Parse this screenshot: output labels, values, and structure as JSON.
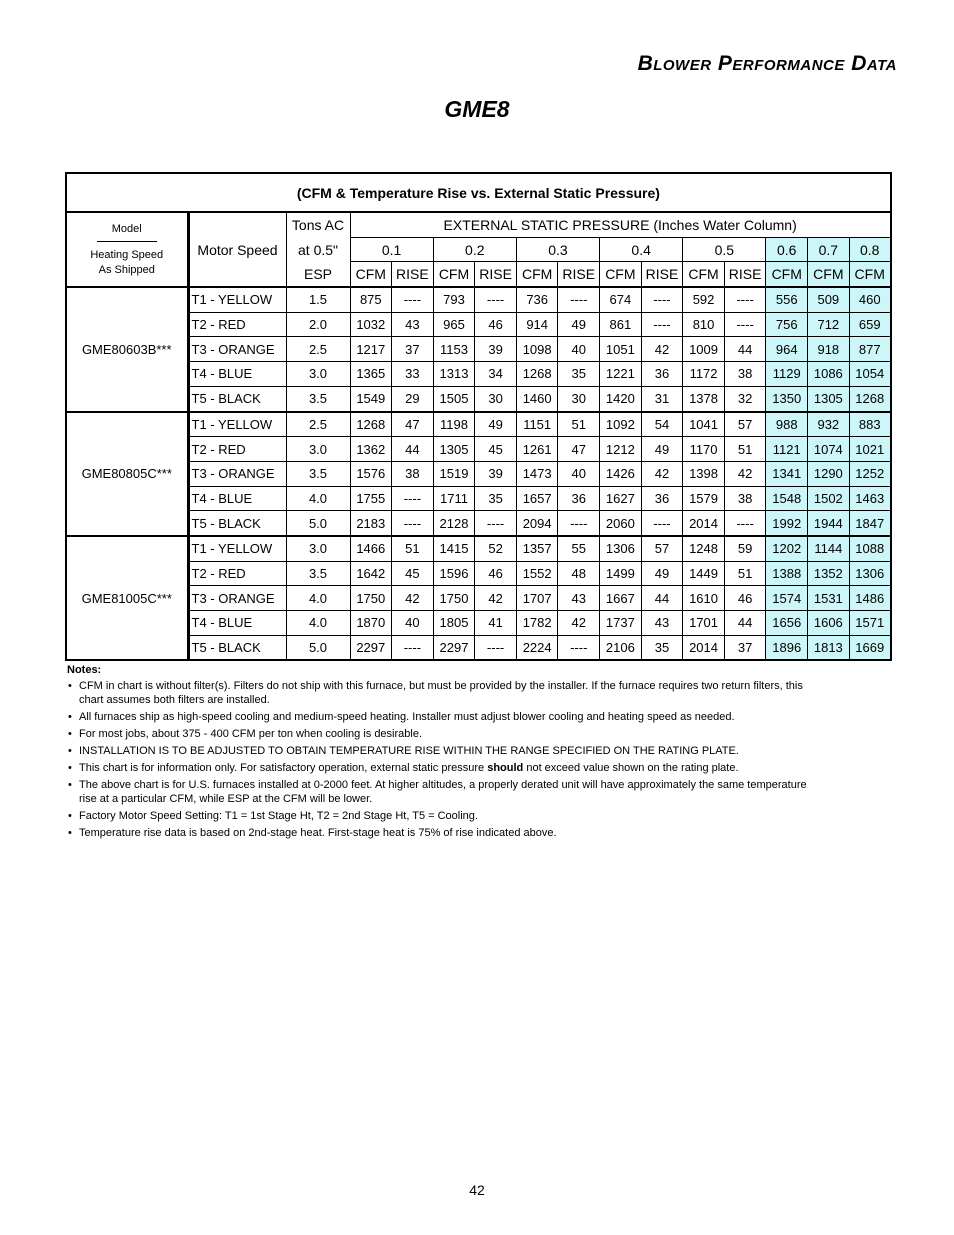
{
  "header": {
    "title": "Blower Performance Data",
    "model": "GME8"
  },
  "table": {
    "caption": "(CFM & Temperature Rise vs. External Static Pressure)",
    "head": {
      "model": "Model",
      "heating_speed": "Heating Speed",
      "as_shipped": "As Shipped",
      "motor_speed": "Motor Speed",
      "tons": [
        "Tons AC",
        "at 0.5\"",
        "ESP"
      ],
      "esp_title": "EXTERNAL STATIC PRESSURE (Inches Water Column)",
      "pressures": [
        "0.1",
        "0.2",
        "0.3",
        "0.4",
        "0.5",
        "0.6",
        "0.7",
        "0.8"
      ],
      "units": [
        "CFM",
        "RISE",
        "CFM",
        "RISE",
        "CFM",
        "RISE",
        "CFM",
        "RISE",
        "CFM",
        "RISE",
        "CFM",
        "CFM",
        "CFM"
      ]
    },
    "groups": [
      {
        "model": "GME80603B***",
        "rows": [
          [
            "T1 - YELLOW",
            "1.5",
            "875",
            "----",
            "793",
            "----",
            "736",
            "----",
            "674",
            "----",
            "592",
            "----",
            "556",
            "509",
            "460"
          ],
          [
            "T2 - RED",
            "2.0",
            "1032",
            "43",
            "965",
            "46",
            "914",
            "49",
            "861",
            "----",
            "810",
            "----",
            "756",
            "712",
            "659"
          ],
          [
            "T3 - ORANGE",
            "2.5",
            "1217",
            "37",
            "1153",
            "39",
            "1098",
            "40",
            "1051",
            "42",
            "1009",
            "44",
            "964",
            "918",
            "877"
          ],
          [
            "T4 - BLUE",
            "3.0",
            "1365",
            "33",
            "1313",
            "34",
            "1268",
            "35",
            "1221",
            "36",
            "1172",
            "38",
            "1129",
            "1086",
            "1054"
          ],
          [
            "T5 - BLACK",
            "3.5",
            "1549",
            "29",
            "1505",
            "30",
            "1460",
            "30",
            "1420",
            "31",
            "1378",
            "32",
            "1350",
            "1305",
            "1268"
          ]
        ]
      },
      {
        "model": "GME80805C***",
        "rows": [
          [
            "T1 - YELLOW",
            "2.5",
            "1268",
            "47",
            "1198",
            "49",
            "1151",
            "51",
            "1092",
            "54",
            "1041",
            "57",
            "988",
            "932",
            "883"
          ],
          [
            "T2 - RED",
            "3.0",
            "1362",
            "44",
            "1305",
            "45",
            "1261",
            "47",
            "1212",
            "49",
            "1170",
            "51",
            "1121",
            "1074",
            "1021"
          ],
          [
            "T3 - ORANGE",
            "3.5",
            "1576",
            "38",
            "1519",
            "39",
            "1473",
            "40",
            "1426",
            "42",
            "1398",
            "42",
            "1341",
            "1290",
            "1252"
          ],
          [
            "T4 - BLUE",
            "4.0",
            "1755",
            "----",
            "1711",
            "35",
            "1657",
            "36",
            "1627",
            "36",
            "1579",
            "38",
            "1548",
            "1502",
            "1463"
          ],
          [
            "T5 - BLACK",
            "5.0",
            "2183",
            "----",
            "2128",
            "----",
            "2094",
            "----",
            "2060",
            "----",
            "2014",
            "----",
            "1992",
            "1944",
            "1847"
          ]
        ]
      },
      {
        "model": "GME81005C***",
        "rows": [
          [
            "T1 - YELLOW",
            "3.0",
            "1466",
            "51",
            "1415",
            "52",
            "1357",
            "55",
            "1306",
            "57",
            "1248",
            "59",
            "1202",
            "1144",
            "1088"
          ],
          [
            "T2 - RED",
            "3.5",
            "1642",
            "45",
            "1596",
            "46",
            "1552",
            "48",
            "1499",
            "49",
            "1449",
            "51",
            "1388",
            "1352",
            "1306"
          ],
          [
            "T3 - ORANGE",
            "4.0",
            "1750",
            "42",
            "1750",
            "42",
            "1707",
            "43",
            "1667",
            "44",
            "1610",
            "46",
            "1574",
            "1531",
            "1486"
          ],
          [
            "T4 - BLUE",
            "4.0",
            "1870",
            "40",
            "1805",
            "41",
            "1782",
            "42",
            "1737",
            "43",
            "1701",
            "44",
            "1656",
            "1606",
            "1571"
          ],
          [
            "T5 - BLACK",
            "5.0",
            "2297",
            "----",
            "2297",
            "----",
            "2224",
            "----",
            "2106",
            "35",
            "2014",
            "37",
            "1896",
            "1813",
            "1669"
          ]
        ]
      }
    ]
  },
  "notes": {
    "title": "Notes:",
    "items": [
      "CFM in chart is without filter(s).  Filters do not ship with this furnace, but must be provided by the installer. If the furnace requires two return filters, this chart assumes both filters are installed.",
      "All furnaces ship as high-speed cooling and medium-speed heating. Installer must adjust blower cooling and heating speed as needed.",
      "For most jobs, about 375 - 400 CFM per ton when cooling is desirable.",
      "INSTALLATION IS TO BE ADJUSTED TO OBTAIN TEMPERATURE RISE WITHIN THE RANGE SPECIFIED ON THE RATING PLATE.",
      {
        "before": "This chart is for information only.  For satisfactory operation, external static pressure",
        "bold": "should",
        "after": "not exceed value shown on the rating plate."
      },
      "The above chart is for U.S. furnaces installed at 0-2000 feet. At higher altitudes, a properly derated unit will have approximately the same temperature rise at a particular CFM, while ESP at the CFM will be lower.",
      "Factory Motor Speed Setting: T1 = 1st Stage Ht, T2 = 2nd Stage Ht, T5 = Cooling.",
      "Temperature rise data is based on 2nd-stage heat.  First-stage heat is 75% of rise indicated above."
    ]
  },
  "page_number": "42"
}
